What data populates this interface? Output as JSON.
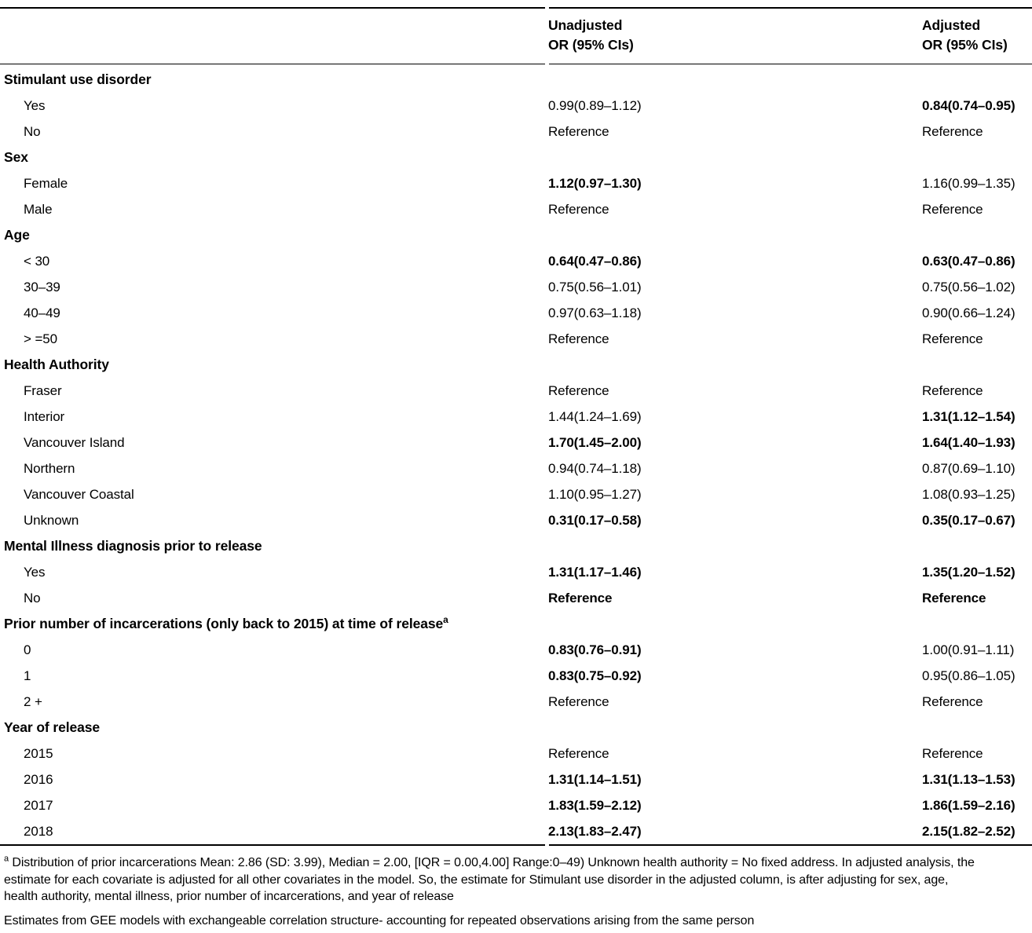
{
  "page": {
    "background_color": "#ffffff",
    "text_color": "#000000"
  },
  "table": {
    "column_headers": [
      {
        "line1": "Unadjusted",
        "line2": "OR (95% CIs)"
      },
      {
        "line1": "Adjusted",
        "line2": "OR (95% CIs)"
      }
    ],
    "sections": [
      {
        "label": "Stimulant use disorder",
        "rows": [
          {
            "label": "Yes",
            "unadjusted": "0.99(0.89–1.12)",
            "unadjusted_bold": false,
            "adjusted": "0.84(0.74–0.95)",
            "adjusted_bold": true
          },
          {
            "label": "No",
            "unadjusted": "Reference",
            "unadjusted_bold": false,
            "adjusted": "Reference",
            "adjusted_bold": false
          }
        ]
      },
      {
        "label": "Sex",
        "rows": [
          {
            "label": "Female",
            "unadjusted": "1.12(0.97–1.30)",
            "unadjusted_bold": true,
            "adjusted": "1.16(0.99–1.35)",
            "adjusted_bold": false
          },
          {
            "label": "Male",
            "unadjusted": "Reference",
            "unadjusted_bold": false,
            "adjusted": "Reference",
            "adjusted_bold": false
          }
        ]
      },
      {
        "label": "Age",
        "rows": [
          {
            "label": "< 30",
            "unadjusted": "0.64(0.47–0.86)",
            "unadjusted_bold": true,
            "adjusted": "0.63(0.47–0.86)",
            "adjusted_bold": true
          },
          {
            "label": "30–39",
            "unadjusted": "0.75(0.56–1.01)",
            "unadjusted_bold": false,
            "adjusted": "0.75(0.56–1.02)",
            "adjusted_bold": false
          },
          {
            "label": "40–49",
            "unadjusted": "0.97(0.63–1.18)",
            "unadjusted_bold": false,
            "adjusted": "0.90(0.66–1.24)",
            "adjusted_bold": false
          },
          {
            "label": "> =50",
            "unadjusted": "Reference",
            "unadjusted_bold": false,
            "adjusted": "Reference",
            "adjusted_bold": false
          }
        ]
      },
      {
        "label": "Health Authority",
        "rows": [
          {
            "label": "Fraser",
            "unadjusted": "Reference",
            "unadjusted_bold": false,
            "adjusted": "Reference",
            "adjusted_bold": false
          },
          {
            "label": "Interior",
            "unadjusted": "1.44(1.24–1.69)",
            "unadjusted_bold": false,
            "adjusted": "1.31(1.12–1.54)",
            "adjusted_bold": true
          },
          {
            "label": "Vancouver Island",
            "unadjusted": "1.70(1.45–2.00)",
            "unadjusted_bold": true,
            "adjusted": "1.64(1.40–1.93)",
            "adjusted_bold": true
          },
          {
            "label": "Northern",
            "unadjusted": "0.94(0.74–1.18)",
            "unadjusted_bold": false,
            "adjusted": "0.87(0.69–1.10)",
            "adjusted_bold": false
          },
          {
            "label": "Vancouver Coastal",
            "unadjusted": "1.10(0.95–1.27)",
            "unadjusted_bold": false,
            "adjusted": "1.08(0.93–1.25)",
            "adjusted_bold": false
          },
          {
            "label": "Unknown",
            "unadjusted": "0.31(0.17–0.58)",
            "unadjusted_bold": true,
            "adjusted": "0.35(0.17–0.67)",
            "adjusted_bold": true
          }
        ]
      },
      {
        "label": "Mental Illness diagnosis prior to release",
        "rows": [
          {
            "label": "Yes",
            "unadjusted": "1.31(1.17–1.46)",
            "unadjusted_bold": true,
            "adjusted": "1.35(1.20–1.52)",
            "adjusted_bold": true
          },
          {
            "label": "No",
            "unadjusted": "Reference",
            "unadjusted_bold": true,
            "adjusted": "Reference",
            "adjusted_bold": true
          }
        ]
      },
      {
        "label": "Prior number of incarcerations (only back to 2015) at time of release",
        "sup": "a",
        "rows": [
          {
            "label": "0",
            "unadjusted": "0.83(0.76–0.91)",
            "unadjusted_bold": true,
            "adjusted": "1.00(0.91–1.11)",
            "adjusted_bold": false
          },
          {
            "label": "1",
            "unadjusted": "0.83(0.75–0.92)",
            "unadjusted_bold": true,
            "adjusted": "0.95(0.86–1.05)",
            "adjusted_bold": false
          },
          {
            "label": "2 +",
            "unadjusted": "Reference",
            "unadjusted_bold": false,
            "adjusted": "Reference",
            "adjusted_bold": false
          }
        ]
      },
      {
        "label": "Year of release",
        "rows": [
          {
            "label": "2015",
            "unadjusted": "Reference",
            "unadjusted_bold": false,
            "adjusted": "Reference",
            "adjusted_bold": false
          },
          {
            "label": "2016",
            "unadjusted": "1.31(1.14–1.51)",
            "unadjusted_bold": true,
            "adjusted": "1.31(1.13–1.53)",
            "adjusted_bold": true
          },
          {
            "label": "2017",
            "unadjusted": "1.83(1.59–2.12)",
            "unadjusted_bold": true,
            "adjusted": "1.86(1.59–2.16)",
            "adjusted_bold": true
          },
          {
            "label": "2018",
            "unadjusted": "2.13(1.83–2.47)",
            "unadjusted_bold": true,
            "adjusted": "2.15(1.82–2.52)",
            "adjusted_bold": true
          }
        ]
      }
    ]
  },
  "footnotes": {
    "a_sup": "a",
    "a_text": "Distribution of prior incarcerations Mean: 2.86 (SD: 3.99), Median = 2.00, [IQR = 0.00,4.00] Range:0–49) Unknown health authority = No fixed address. In adjusted analysis, the estimate for each covariate is adjusted for all other covariates in the model. So, the estimate for Stimulant use disorder in the adjusted column, is after adjusting for sex, age, health authority, mental illness, prior number of incarcerations, and year of release",
    "gee_text": "Estimates from GEE models with exchangeable correlation structure- accounting for repeated observations arising from the same person"
  }
}
